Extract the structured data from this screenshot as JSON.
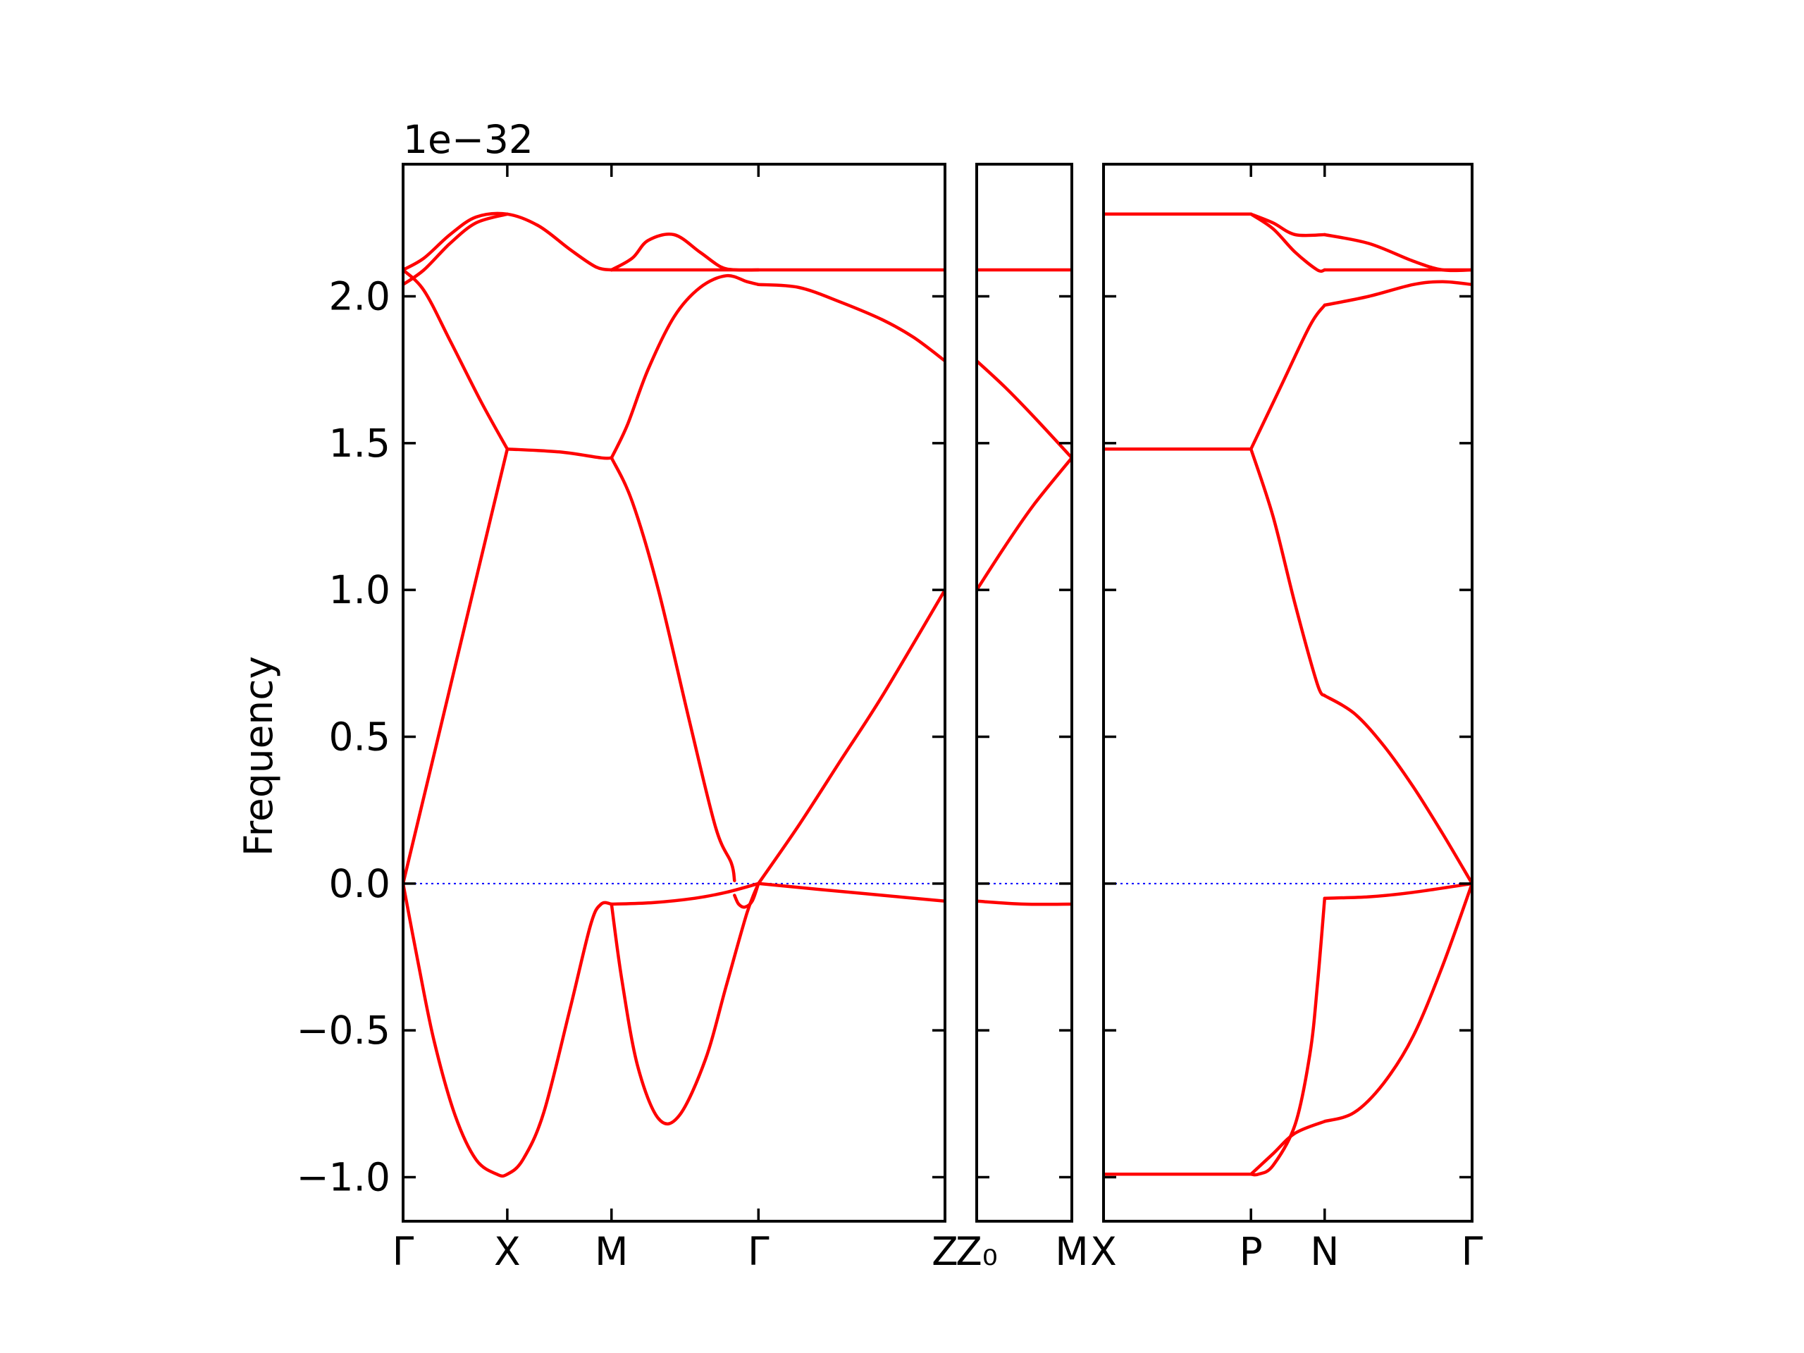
{
  "chart_data": {
    "type": "line",
    "title": "",
    "ylabel": "Frequency",
    "offset_text": "1e−32",
    "ylim": [
      -1.15,
      2.45
    ],
    "yticks": [
      {
        "value": -1.0,
        "label": "−1.0"
      },
      {
        "value": -0.5,
        "label": "−0.5"
      },
      {
        "value": 0.0,
        "label": "0.0"
      },
      {
        "value": 0.5,
        "label": "0.5"
      },
      {
        "value": 1.0,
        "label": "1.0"
      },
      {
        "value": 1.5,
        "label": "1.5"
      },
      {
        "value": 2.0,
        "label": "2.0"
      }
    ],
    "colors": {
      "bands": "#ff0000",
      "zero_line": "#0000ff",
      "axes": "#000000"
    },
    "panels": [
      {
        "name": "panel-1",
        "xlim": [
          0,
          5.2
        ],
        "xticks": [
          {
            "value": 0,
            "label": "Γ"
          },
          {
            "value": 1.0,
            "label": "X"
          },
          {
            "value": 2.0,
            "label": "M"
          },
          {
            "value": 3.41,
            "label": "Γ"
          },
          {
            "value": 5.2,
            "label": "Z"
          }
        ],
        "bands": [
          {
            "x": [
              0,
              0.2,
              0.45,
              0.7,
              1.0,
              1.3,
              1.6,
              1.85,
              2.0
            ],
            "y": [
              2.09,
              2.13,
              2.21,
              2.27,
              2.28,
              2.24,
              2.16,
              2.1,
              2.09
            ]
          },
          {
            "x": [
              0,
              0.2,
              0.45,
              0.7,
              1.0
            ],
            "y": [
              2.04,
              2.09,
              2.18,
              2.25,
              2.28
            ]
          },
          {
            "x": [
              2.0,
              2.2,
              2.35,
              2.6,
              2.85,
              3.05,
              3.2,
              3.41
            ],
            "y": [
              2.09,
              2.13,
              2.19,
              2.21,
              2.15,
              2.1,
              2.09,
              2.09
            ]
          },
          {
            "x": [
              2.0,
              3.0,
              4.0,
              5.2
            ],
            "y": [
              2.09,
              2.09,
              2.09,
              2.09
            ]
          },
          {
            "x": [
              0,
              0.2,
              0.45,
              0.75,
              1.0
            ],
            "y": [
              2.09,
              2.02,
              1.85,
              1.64,
              1.48
            ]
          },
          {
            "x": [
              0,
              0.25,
              0.5,
              0.75,
              1.0
            ],
            "y": [
              0.0,
              0.37,
              0.74,
              1.11,
              1.48
            ]
          },
          {
            "x": [
              1.0,
              1.5,
              1.9,
              2.0
            ],
            "y": [
              1.48,
              1.47,
              1.45,
              1.45
            ]
          },
          {
            "x": [
              2.0,
              2.15,
              2.35,
              2.6,
              2.85,
              3.1,
              3.3,
              3.41
            ],
            "y": [
              1.45,
              1.56,
              1.75,
              1.93,
              2.03,
              2.07,
              2.05,
              2.04
            ]
          },
          {
            "x": [
              3.41,
              3.8,
              4.2,
              4.6,
              4.9,
              5.2
            ],
            "y": [
              2.04,
              2.03,
              1.98,
              1.92,
              1.86,
              1.78
            ]
          },
          {
            "x": [
              2.0,
              2.2,
              2.45,
              2.75,
              3.0,
              3.15,
              3.18
            ],
            "y": [
              1.45,
              1.3,
              1.0,
              0.55,
              0.19,
              0.07,
              0.01
            ]
          },
          {
            "x": [
              3.18,
              3.22,
              3.28,
              3.35,
              3.41
            ],
            "y": [
              -0.04,
              -0.07,
              -0.08,
              -0.06,
              0.0
            ]
          },
          {
            "x": [
              3.41,
              3.8,
              4.2,
              4.6,
              5.2
            ],
            "y": [
              0.0,
              0.2,
              0.42,
              0.64,
              1.0
            ]
          },
          {
            "x": [
              2.0,
              2.4,
              2.8,
              3.1,
              3.41
            ],
            "y": [
              -0.07,
              -0.065,
              -0.05,
              -0.03,
              0.0
            ]
          },
          {
            "x": [
              3.41,
              4.0,
              4.6,
              5.2
            ],
            "y": [
              0.0,
              -0.02,
              -0.04,
              -0.06
            ]
          },
          {
            "x": [
              0,
              0.15,
              0.3,
              0.5,
              0.7,
              0.9,
              1.0,
              1.15,
              1.35,
              1.6,
              1.8,
              1.9,
              2.0
            ],
            "y": [
              0.0,
              -0.28,
              -0.54,
              -0.79,
              -0.94,
              -0.99,
              -0.99,
              -0.94,
              -0.78,
              -0.43,
              -0.14,
              -0.07,
              -0.07
            ]
          },
          {
            "x": [
              2.0,
              2.1,
              2.25,
              2.45,
              2.65,
              2.9,
              3.1,
              3.3,
              3.41
            ],
            "y": [
              -0.07,
              -0.33,
              -0.62,
              -0.8,
              -0.79,
              -0.6,
              -0.35,
              -0.1,
              0.0
            ]
          }
        ]
      },
      {
        "name": "panel-2",
        "xlim": [
          0,
          1.0
        ],
        "xticks": [
          {
            "value": 0,
            "label": "Z₀"
          },
          {
            "value": 1.0,
            "label": "M"
          }
        ],
        "bands": [
          {
            "x": [
              0,
              0.5,
              1.0
            ],
            "y": [
              2.09,
              2.09,
              2.09
            ]
          },
          {
            "x": [
              0,
              0.3,
              0.6,
              1.0
            ],
            "y": [
              1.78,
              1.69,
              1.59,
              1.45
            ]
          },
          {
            "x": [
              0,
              0.3,
              0.6,
              1.0
            ],
            "y": [
              1.0,
              1.15,
              1.29,
              1.45
            ]
          },
          {
            "x": [
              0,
              0.5,
              1.0
            ],
            "y": [
              -0.06,
              -0.07,
              -0.07
            ]
          }
        ]
      },
      {
        "name": "panel-3",
        "xlim": [
          0,
          2.5
        ],
        "xticks": [
          {
            "value": 0,
            "label": "X"
          },
          {
            "value": 1.0,
            "label": "P"
          },
          {
            "value": 1.5,
            "label": "N"
          },
          {
            "value": 2.5,
            "label": "Γ"
          }
        ],
        "bands": [
          {
            "x": [
              0,
              0.5,
              1.0
            ],
            "y": [
              2.28,
              2.28,
              2.28
            ]
          },
          {
            "x": [
              1.0,
              1.15,
              1.3,
              1.5
            ],
            "y": [
              2.28,
              2.25,
              2.21,
              2.21
            ]
          },
          {
            "x": [
              1.5,
              1.8,
              2.1,
              2.3,
              2.5
            ],
            "y": [
              2.21,
              2.18,
              2.12,
              2.09,
              2.09
            ]
          },
          {
            "x": [
              1.0,
              1.15,
              1.3,
              1.45,
              1.5
            ],
            "y": [
              2.28,
              2.23,
              2.15,
              2.09,
              2.09
            ]
          },
          {
            "x": [
              1.5,
              2.0,
              2.5
            ],
            "y": [
              2.09,
              2.09,
              2.09
            ]
          },
          {
            "x": [
              0,
              0.5,
              1.0
            ],
            "y": [
              1.48,
              1.48,
              1.48
            ]
          },
          {
            "x": [
              1.0,
              1.2,
              1.4,
              1.5
            ],
            "y": [
              1.48,
              1.69,
              1.9,
              1.97
            ]
          },
          {
            "x": [
              1.5,
              1.8,
              2.1,
              2.3,
              2.5
            ],
            "y": [
              1.97,
              2.0,
              2.04,
              2.05,
              2.04
            ]
          },
          {
            "x": [
              1.0,
              1.15,
              1.3,
              1.45,
              1.5
            ],
            "y": [
              1.48,
              1.25,
              0.95,
              0.68,
              0.64
            ]
          },
          {
            "x": [
              1.5,
              1.7,
              1.9,
              2.1,
              2.3,
              2.5
            ],
            "y": [
              0.64,
              0.58,
              0.47,
              0.33,
              0.17,
              0.0
            ]
          },
          {
            "x": [
              1.5,
              1.8,
              2.1,
              2.5
            ],
            "y": [
              -0.05,
              -0.045,
              -0.03,
              0.0
            ]
          },
          {
            "x": [
              1.5,
              1.45,
              1.4,
              1.3,
              1.15,
              1.05,
              1.0
            ],
            "y": [
              -0.05,
              -0.35,
              -0.58,
              -0.82,
              -0.96,
              -0.99,
              -0.99
            ]
          },
          {
            "x": [
              0,
              0.5,
              1.0
            ],
            "y": [
              -0.99,
              -0.99,
              -0.99
            ]
          },
          {
            "x": [
              1.0,
              1.15,
              1.3,
              1.5
            ],
            "y": [
              -0.99,
              -0.92,
              -0.85,
              -0.81
            ]
          },
          {
            "x": [
              1.5,
              1.7,
              1.9,
              2.1,
              2.3,
              2.5
            ],
            "y": [
              -0.81,
              -0.78,
              -0.68,
              -0.52,
              -0.28,
              0.0
            ]
          }
        ]
      }
    ]
  }
}
